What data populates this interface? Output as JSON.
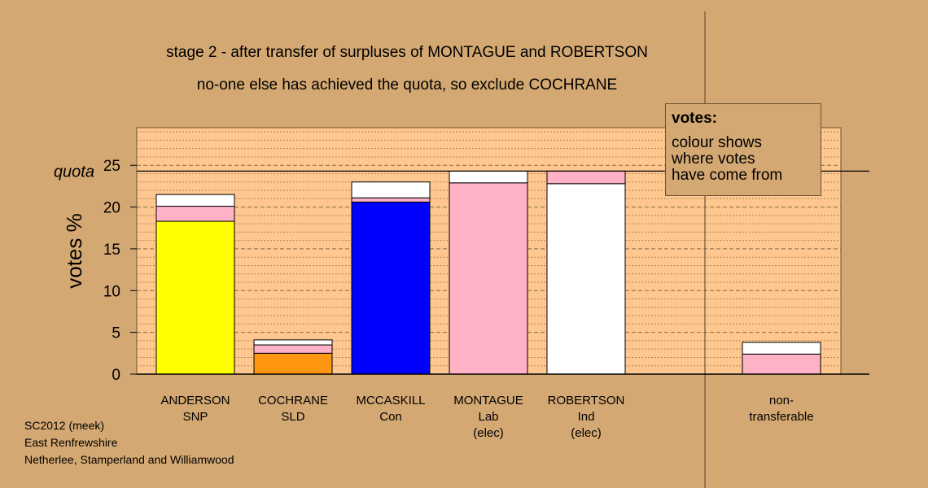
{
  "chart_data": {
    "type": "bar",
    "stacked": true,
    "title": "stage 2 - after transfer of surpluses of MONTAGUE and ROBERTSON",
    "subtitle": "no-one else has achieved the quota, so exclude COCHRANE",
    "ylabel": "votes %",
    "quota_label": "quota",
    "quota": 24.3,
    "ylim": [
      0,
      29.5
    ],
    "yticks": [
      0,
      5,
      10,
      15,
      20,
      25
    ],
    "grid": true,
    "categories": [
      {
        "name": "ANDERSON",
        "party": "SNP",
        "status": ""
      },
      {
        "name": "COCHRANE",
        "party": "SLD",
        "status": ""
      },
      {
        "name": "MCCASKILL",
        "party": "Con",
        "status": ""
      },
      {
        "name": "MONTAGUE",
        "party": "Lab",
        "status": "(elec)"
      },
      {
        "name": "ROBERTSON",
        "party": "Ind",
        "status": "(elec)"
      },
      {
        "name": "",
        "party": "",
        "status": ""
      },
      {
        "name": "non-",
        "party": "transferable",
        "status": ""
      }
    ],
    "segments": [
      [
        {
          "value": 18.3,
          "color": "#ffff00"
        },
        {
          "value": 1.8,
          "color": "#ffb2c6"
        },
        {
          "value": 1.4,
          "color": "#ffffff"
        }
      ],
      [
        {
          "value": 2.5,
          "color": "#ff9611"
        },
        {
          "value": 1.0,
          "color": "#ffb2c6"
        },
        {
          "value": 0.6,
          "color": "#ffffff"
        }
      ],
      [
        {
          "value": 20.6,
          "color": "#0000ff"
        },
        {
          "value": 0.5,
          "color": "#ffb2c6"
        },
        {
          "value": 1.9,
          "color": "#ffffff"
        }
      ],
      [
        {
          "value": 22.9,
          "color": "#ffb2c6"
        },
        {
          "value": 1.4,
          "color": "#ffffff"
        }
      ],
      [
        {
          "value": 22.8,
          "color": "#ffffff"
        },
        {
          "value": 1.5,
          "color": "#ffb2c6"
        }
      ],
      [],
      [
        {
          "value": 2.4,
          "color": "#ffb2c6"
        },
        {
          "value": 1.4,
          "color": "#ffffff"
        }
      ]
    ]
  },
  "legend": {
    "title": "votes:",
    "body": "colour shows\nwhere votes\nhave come from"
  },
  "footer": {
    "line1": "SC2012 (meek)",
    "line2": "East Renfrewshire",
    "line3": "Netherlee, Stamperland and Williamwood"
  },
  "colors": {
    "background": "#d4a872",
    "plot_area": "#fdc78f"
  }
}
